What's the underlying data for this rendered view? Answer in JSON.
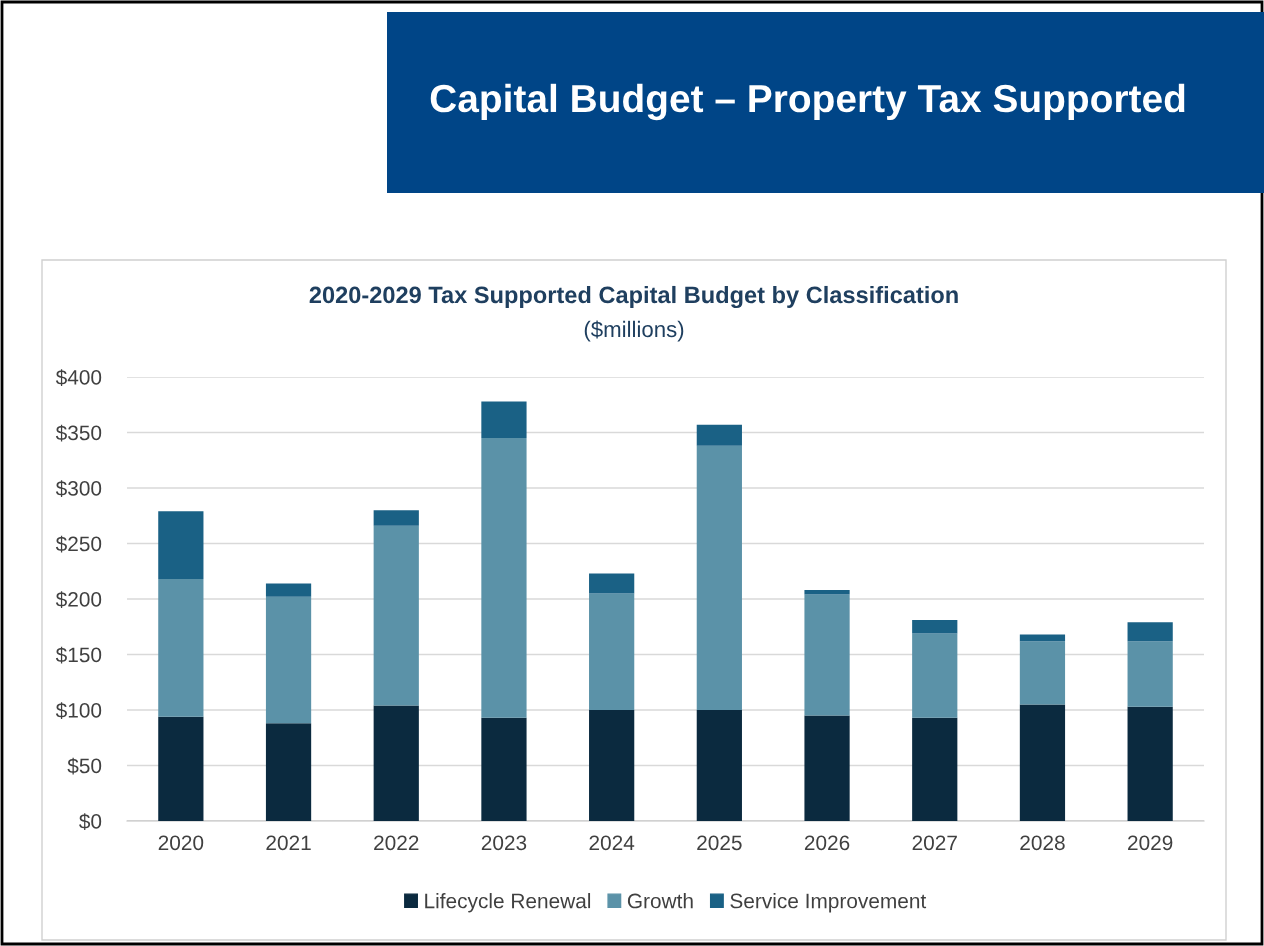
{
  "chart_data": {
    "type": "bar",
    "stacked": true,
    "title": "2020-2029 Tax Supported Capital Budget by Classification",
    "subtitle": "($millions)",
    "annotations": [
      "Capital Budget – Property Tax Supported"
    ],
    "categories": [
      "2020",
      "2021",
      "2022",
      "2023",
      "2024",
      "2025",
      "2026",
      "2027",
      "2028",
      "2029"
    ],
    "series": [
      {
        "name": "Lifecycle Renewal",
        "color": "#0b2a3f",
        "values": [
          94,
          88,
          104,
          93,
          100,
          100,
          95,
          93,
          105,
          103
        ]
      },
      {
        "name": "Growth",
        "color": "#5b92a8",
        "values": [
          124,
          114,
          162,
          252,
          105,
          238,
          109,
          76,
          57,
          59
        ]
      },
      {
        "name": "Service Improvement",
        "color": "#1a6185",
        "values": [
          61,
          12,
          14,
          33,
          18,
          19,
          4,
          12,
          6,
          17
        ]
      }
    ],
    "ylim": [
      0,
      400
    ],
    "yticks": [
      {
        "value": 0,
        "label": "$0"
      },
      {
        "value": 50,
        "label": "$50"
      },
      {
        "value": 100,
        "label": "$100"
      },
      {
        "value": 150,
        "label": "$150"
      },
      {
        "value": 200,
        "label": "$200"
      },
      {
        "value": 250,
        "label": "$250"
      },
      {
        "value": 300,
        "label": "$300"
      },
      {
        "value": 350,
        "label": "$350"
      },
      {
        "value": 400,
        "label": "$400"
      }
    ],
    "grid": "y",
    "legend": "bottom"
  }
}
